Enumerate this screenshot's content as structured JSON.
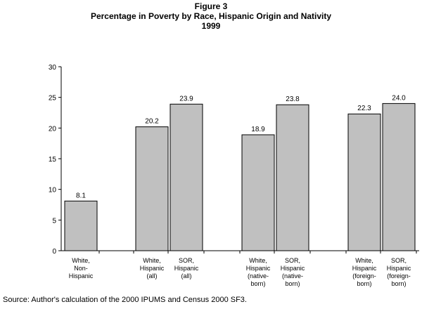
{
  "figure_label": "Figure 3",
  "chart_data": {
    "type": "bar",
    "title": "Percentage in Poverty by Race, Hispanic Origin and Nativity",
    "subtitle": "1999",
    "categories": [
      [
        "White,",
        "Non-",
        "Hispanic"
      ],
      [
        "White,",
        "Hispanic",
        "(all)"
      ],
      [
        "SOR,",
        "Hispanic",
        "(all)"
      ],
      [
        "White,",
        "Hispanic",
        "(native-",
        "born)"
      ],
      [
        "SOR,",
        "Hispanic",
        "(native-",
        "born)"
      ],
      [
        "White,",
        "Hispanic",
        "(foreign-",
        "born)"
      ],
      [
        "SOR,",
        "Hispanic",
        "(foreign-",
        "born)"
      ]
    ],
    "values": [
      8.1,
      20.2,
      23.9,
      18.9,
      23.8,
      22.3,
      24.0
    ],
    "value_labels": [
      "8.1",
      "20.2",
      "23.9",
      "18.9",
      "23.8",
      "22.3",
      "24.0"
    ],
    "ylim": [
      0,
      30
    ],
    "yticks": [
      0,
      5,
      10,
      15,
      20,
      25,
      30
    ],
    "grid": false,
    "legend": "none",
    "bar_color": "#c0c0c0",
    "bar_edge_color": "#000000"
  },
  "source_note": "Source: Author's calculation of the 2000 IPUMS and Census 2000 SF3."
}
